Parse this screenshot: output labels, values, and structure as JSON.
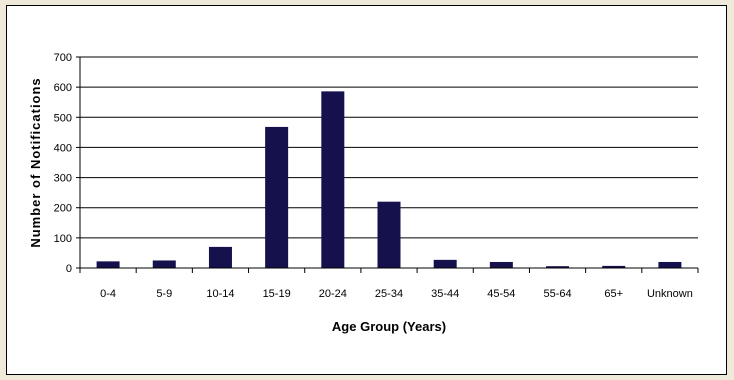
{
  "chart_data": {
    "type": "bar",
    "title": "",
    "xlabel": "Age Group (Years)",
    "ylabel": "Number of Notifications",
    "categories": [
      "0-4",
      "5-9",
      "10-14",
      "15-19",
      "20-24",
      "25-34",
      "35-44",
      "45-54",
      "55-64",
      "65+",
      "Unknown"
    ],
    "values": [
      22,
      25,
      70,
      468,
      586,
      220,
      27,
      20,
      6,
      7,
      20
    ],
    "ylim": [
      0,
      700
    ],
    "yticks": [
      0,
      100,
      200,
      300,
      400,
      500,
      600,
      700
    ],
    "grid": "horizontal",
    "legend": "none",
    "colors": {
      "bar": "#14114d",
      "frame_background": "#ffffff",
      "page_background": "#efe9d9",
      "grid": "#000000"
    }
  }
}
